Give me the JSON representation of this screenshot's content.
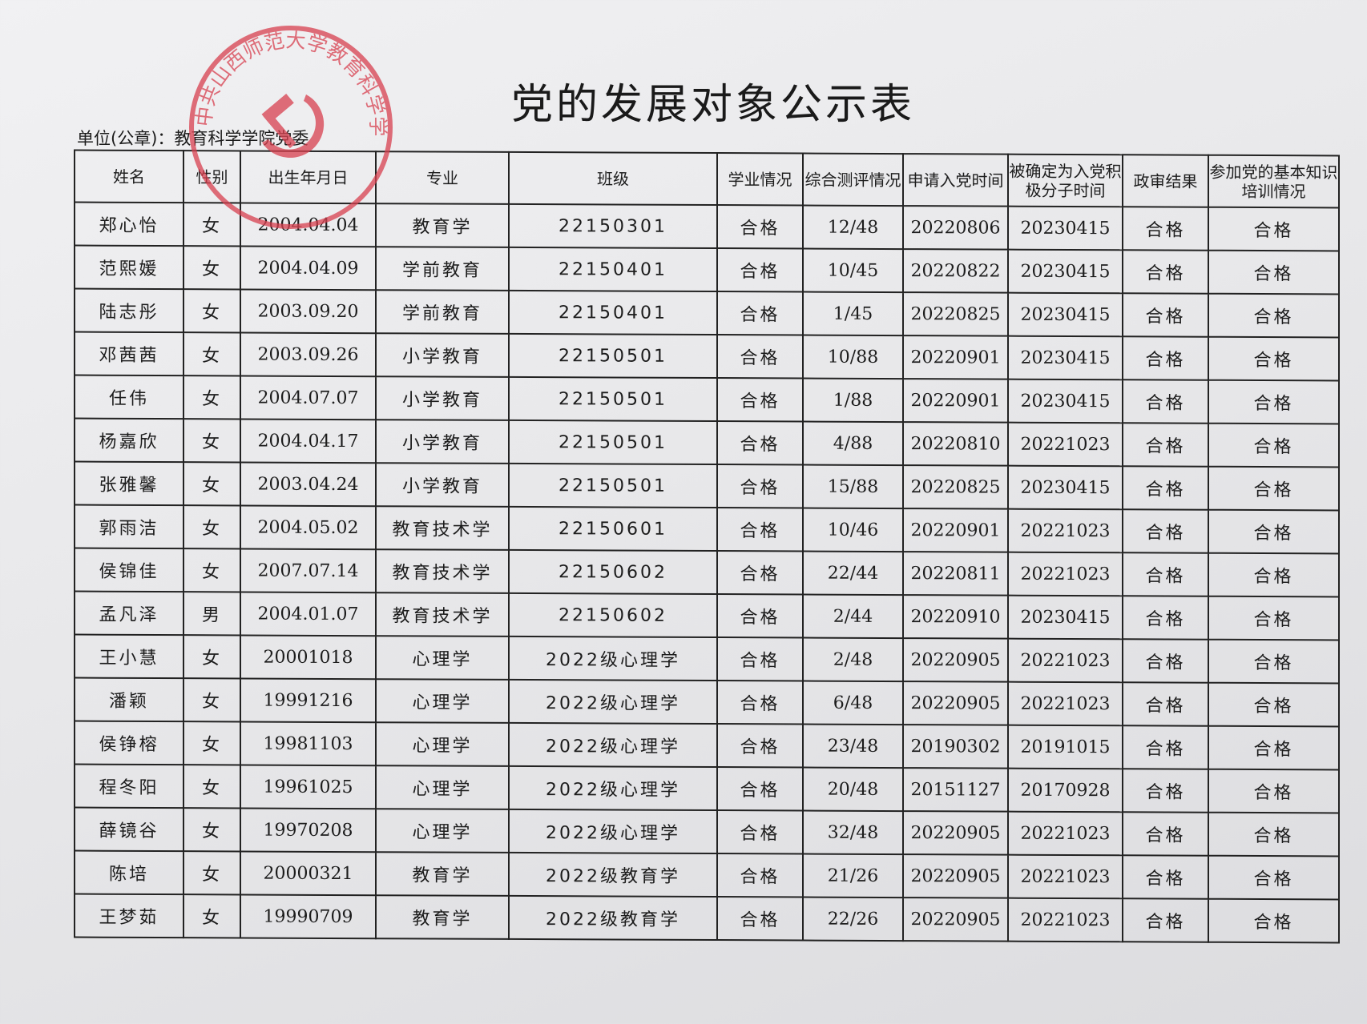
{
  "title": "党的发展对象公示表",
  "unit_label": "单位(公章)：教育科学学院党委",
  "stamp": {
    "text": "中共山西师范大学教育科学学院委员会",
    "color": "#d8404f",
    "emblem": "hammer-sickle"
  },
  "columns": [
    "姓名",
    "性别",
    "出生年月日",
    "专业",
    "班级",
    "学业情况",
    "综合测评情况",
    "申请入党时间",
    "被确定为入党积极分子时间",
    "政审结果",
    "参加党的基本知识培训情况"
  ],
  "rows": [
    [
      "郑心怡",
      "女",
      "2004.04.04",
      "教育学",
      "22150301",
      "合格",
      "12/48",
      "20220806",
      "20230415",
      "合格",
      "合格"
    ],
    [
      "范熙媛",
      "女",
      "2004.04.09",
      "学前教育",
      "22150401",
      "合格",
      "10/45",
      "20220822",
      "20230415",
      "合格",
      "合格"
    ],
    [
      "陆志彤",
      "女",
      "2003.09.20",
      "学前教育",
      "22150401",
      "合格",
      "1/45",
      "20220825",
      "20230415",
      "合格",
      "合格"
    ],
    [
      "邓茜茜",
      "女",
      "2003.09.26",
      "小学教育",
      "22150501",
      "合格",
      "10/88",
      "20220901",
      "20230415",
      "合格",
      "合格"
    ],
    [
      "任伟",
      "女",
      "2004.07.07",
      "小学教育",
      "22150501",
      "合格",
      "1/88",
      "20220901",
      "20230415",
      "合格",
      "合格"
    ],
    [
      "杨嘉欣",
      "女",
      "2004.04.17",
      "小学教育",
      "22150501",
      "合格",
      "4/88",
      "20220810",
      "20221023",
      "合格",
      "合格"
    ],
    [
      "张雅馨",
      "女",
      "2003.04.24",
      "小学教育",
      "22150501",
      "合格",
      "15/88",
      "20220825",
      "20230415",
      "合格",
      "合格"
    ],
    [
      "郭雨洁",
      "女",
      "2004.05.02",
      "教育技术学",
      "22150601",
      "合格",
      "10/46",
      "20220901",
      "20221023",
      "合格",
      "合格"
    ],
    [
      "侯锦佳",
      "女",
      "2007.07.14",
      "教育技术学",
      "22150602",
      "合格",
      "22/44",
      "20220811",
      "20221023",
      "合格",
      "合格"
    ],
    [
      "孟凡泽",
      "男",
      "2004.01.07",
      "教育技术学",
      "22150602",
      "合格",
      "2/44",
      "20220910",
      "20230415",
      "合格",
      "合格"
    ],
    [
      "王小慧",
      "女",
      "20001018",
      "心理学",
      "2022级心理学",
      "合格",
      "2/48",
      "20220905",
      "20221023",
      "合格",
      "合格"
    ],
    [
      "潘颖",
      "女",
      "19991216",
      "心理学",
      "2022级心理学",
      "合格",
      "6/48",
      "20220905",
      "20221023",
      "合格",
      "合格"
    ],
    [
      "侯铮榕",
      "女",
      "19981103",
      "心理学",
      "2022级心理学",
      "合格",
      "23/48",
      "20190302",
      "20191015",
      "合格",
      "合格"
    ],
    [
      "程冬阳",
      "女",
      "19961025",
      "心理学",
      "2022级心理学",
      "合格",
      "20/48",
      "20151127",
      "20170928",
      "合格",
      "合格"
    ],
    [
      "薛镜谷",
      "女",
      "19970208",
      "心理学",
      "2022级心理学",
      "合格",
      "32/48",
      "20220905",
      "20221023",
      "合格",
      "合格"
    ],
    [
      "陈培",
      "女",
      "20000321",
      "教育学",
      "2022级教育学",
      "合格",
      "21/26",
      "20220905",
      "20221023",
      "合格",
      "合格"
    ],
    [
      "王梦茹",
      "女",
      "19990709",
      "教育学",
      "2022级教育学",
      "合格",
      "22/26",
      "20220905",
      "20221023",
      "合格",
      "合格"
    ]
  ]
}
